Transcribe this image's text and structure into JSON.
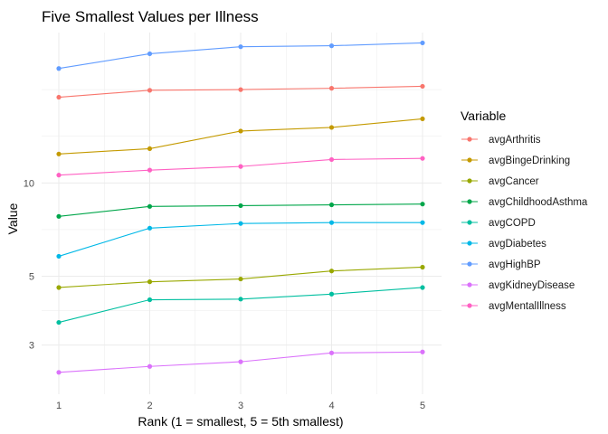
{
  "chart_data": {
    "type": "line",
    "title": "Five Smallest Values per Illness",
    "xlabel": "Rank (1 = smallest, 5 = 5th smallest)",
    "ylabel": "Value",
    "x": [
      1,
      2,
      3,
      4,
      5
    ],
    "x_ticks": [
      "1",
      "2",
      "3",
      "4",
      "5"
    ],
    "y_scale": "log",
    "y_ticks": [
      "3",
      "5",
      "10"
    ],
    "ylim": [
      2.35,
      28
    ],
    "grid": true,
    "legend_title": "Variable",
    "legend_position": "right",
    "series": [
      {
        "name": "avgArthritis",
        "color": "#F8766D",
        "values": [
          18.9,
          19.9,
          20.0,
          20.2,
          20.5
        ]
      },
      {
        "name": "avgBingeDrinking",
        "color": "#C49A00",
        "values": [
          12.4,
          12.9,
          14.7,
          15.1,
          16.1
        ]
      },
      {
        "name": "avgCancer",
        "color": "#99A800",
        "values": [
          4.6,
          4.8,
          4.9,
          5.2,
          5.35
        ]
      },
      {
        "name": "avgChildhoodAsthma",
        "color": "#00A64A",
        "values": [
          7.8,
          8.4,
          8.45,
          8.5,
          8.55
        ]
      },
      {
        "name": "avgCOPD",
        "color": "#00BFA0",
        "values": [
          3.55,
          4.2,
          4.22,
          4.38,
          4.6
        ]
      },
      {
        "name": "avgDiabetes",
        "color": "#00B8E7",
        "values": [
          5.8,
          7.15,
          7.4,
          7.45,
          7.45
        ]
      },
      {
        "name": "avgHighBP",
        "color": "#619CFF",
        "values": [
          23.4,
          26.1,
          27.5,
          27.7,
          28.3
        ]
      },
      {
        "name": "avgKidneyDisease",
        "color": "#DB72FB",
        "values": [
          2.45,
          2.56,
          2.65,
          2.83,
          2.85
        ]
      },
      {
        "name": "avgMentalIllness",
        "color": "#FF61C3",
        "values": [
          10.6,
          11.0,
          11.3,
          11.9,
          12.0
        ]
      }
    ]
  }
}
